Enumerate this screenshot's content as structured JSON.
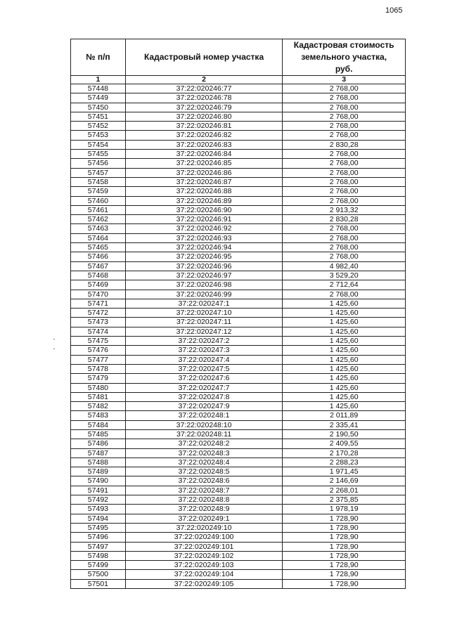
{
  "page_number": "1065",
  "table": {
    "headers": [
      "№ п/п",
      "Кадастровый номер участка",
      "Кадастровая стоимость земельного участка, руб."
    ],
    "column_numbers": [
      "1",
      "2",
      "3"
    ],
    "rows": [
      [
        "57448",
        "37:22:020246:77",
        "2 768,00"
      ],
      [
        "57449",
        "37:22:020246:78",
        "2 768,00"
      ],
      [
        "57450",
        "37:22:020246:79",
        "2 768,00"
      ],
      [
        "57451",
        "37:22:020246:80",
        "2 768,00"
      ],
      [
        "57452",
        "37:22:020246:81",
        "2 768,00"
      ],
      [
        "57453",
        "37:22:020246:82",
        "2 768,00"
      ],
      [
        "57454",
        "37:22:020246:83",
        "2 830,28"
      ],
      [
        "57455",
        "37:22:020246:84",
        "2 768,00"
      ],
      [
        "57456",
        "37:22:020246:85",
        "2 768,00"
      ],
      [
        "57457",
        "37:22:020246:86",
        "2 768,00"
      ],
      [
        "57458",
        "37:22:020246:87",
        "2 768,00"
      ],
      [
        "57459",
        "37:22:020246:88",
        "2 768,00"
      ],
      [
        "57460",
        "37:22:020246:89",
        "2 768,00"
      ],
      [
        "57461",
        "37:22:020246:90",
        "2 913,32"
      ],
      [
        "57462",
        "37:22:020246:91",
        "2 830,28"
      ],
      [
        "57463",
        "37:22:020246:92",
        "2 768,00"
      ],
      [
        "57464",
        "37:22:020246:93",
        "2 768,00"
      ],
      [
        "57465",
        "37:22:020246:94",
        "2 768,00"
      ],
      [
        "57466",
        "37:22:020246:95",
        "2 768,00"
      ],
      [
        "57467",
        "37:22:020246:96",
        "4 982,40"
      ],
      [
        "57468",
        "37:22:020246:97",
        "3 529,20"
      ],
      [
        "57469",
        "37:22:020246:98",
        "2 712,64"
      ],
      [
        "57470",
        "37:22:020246:99",
        "2 768,00"
      ],
      [
        "57471",
        "37:22:020247:1",
        "1 425,60"
      ],
      [
        "57472",
        "37:22:020247:10",
        "1 425,60"
      ],
      [
        "57473",
        "37:22:020247:11",
        "1 425,60"
      ],
      [
        "57474",
        "37:22:020247:12",
        "1 425,60"
      ],
      [
        "57475",
        "37:22:020247:2",
        "1 425,60"
      ],
      [
        "57476",
        "37:22:020247:3",
        "1 425,60"
      ],
      [
        "57477",
        "37:22:020247:4",
        "1 425,60"
      ],
      [
        "57478",
        "37:22:020247:5",
        "1 425,60"
      ],
      [
        "57479",
        "37:22:020247:6",
        "1 425,60"
      ],
      [
        "57480",
        "37:22:020247:7",
        "1 425,60"
      ],
      [
        "57481",
        "37:22:020247:8",
        "1 425,60"
      ],
      [
        "57482",
        "37:22:020247:9",
        "1 425,60"
      ],
      [
        "57483",
        "37:22:020248:1",
        "2 011,89"
      ],
      [
        "57484",
        "37:22:020248:10",
        "2 335,41"
      ],
      [
        "57485",
        "37:22:020248:11",
        "2 190,50"
      ],
      [
        "57486",
        "37:22:020248:2",
        "2 409,55"
      ],
      [
        "57487",
        "37:22:020248:3",
        "2 170,28"
      ],
      [
        "57488",
        "37:22:020248:4",
        "2 288,23"
      ],
      [
        "57489",
        "37:22:020248:5",
        "1 971,45"
      ],
      [
        "57490",
        "37:22:020248:6",
        "2 146,69"
      ],
      [
        "57491",
        "37:22:020248:7",
        "2 268,01"
      ],
      [
        "57492",
        "37:22:020248:8",
        "2 375,85"
      ],
      [
        "57493",
        "37:22:020248:9",
        "1 978,19"
      ],
      [
        "57494",
        "37:22:020249:1",
        "1 728,90"
      ],
      [
        "57495",
        "37:22:020249:10",
        "1 728,90"
      ],
      [
        "57496",
        "37:22:020249:100",
        "1 728,90"
      ],
      [
        "57497",
        "37:22:020249:101",
        "1 728,90"
      ],
      [
        "57498",
        "37:22:020249:102",
        "1 728,90"
      ],
      [
        "57499",
        "37:22:020249:103",
        "1 728,90"
      ],
      [
        "57500",
        "37:22:020249:104",
        "1 728,90"
      ],
      [
        "57501",
        "37:22:020249:105",
        "1 728,90"
      ]
    ]
  }
}
